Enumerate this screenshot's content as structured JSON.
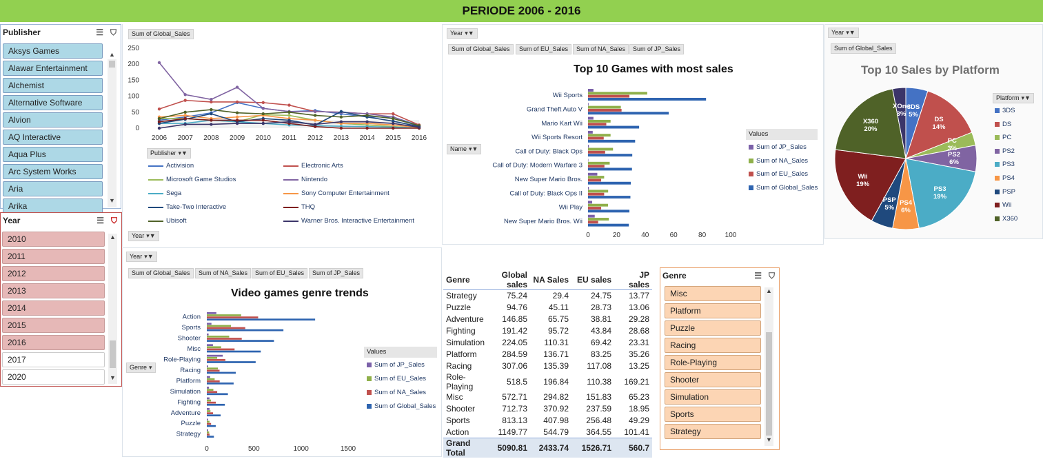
{
  "banner": {
    "title": "PERIODE 2006 - 2016"
  },
  "publisher_slicer": {
    "title": "Publisher",
    "items": [
      "Aksys Games",
      "Alawar Entertainment",
      "Alchemist",
      "Alternative Software",
      "Alvion",
      "AQ Interactive",
      "Aqua Plus",
      "Arc System Works",
      "Aria",
      "Arika"
    ]
  },
  "year_slicer": {
    "title": "Year",
    "items": [
      {
        "label": "2010",
        "selected": true
      },
      {
        "label": "2011",
        "selected": true
      },
      {
        "label": "2012",
        "selected": true
      },
      {
        "label": "2013",
        "selected": true
      },
      {
        "label": "2014",
        "selected": true
      },
      {
        "label": "2015",
        "selected": true
      },
      {
        "label": "2016",
        "selected": true
      },
      {
        "label": "2017",
        "selected": false
      },
      {
        "label": "2020",
        "selected": false
      }
    ]
  },
  "genre_slicer": {
    "title": "Genre",
    "items": [
      "Misc",
      "Platform",
      "Puzzle",
      "Racing",
      "Role-Playing",
      "Shooter",
      "Simulation",
      "Sports",
      "Strategy"
    ]
  },
  "line_chart": {
    "field_button": "Sum of Global_Sales",
    "legend_button": "Publisher",
    "axis_button": "Year",
    "chart_data": {
      "type": "line",
      "x": [
        "2006",
        "2007",
        "2008",
        "2009",
        "2010",
        "2011",
        "2012",
        "2013",
        "2014",
        "2015",
        "2016"
      ],
      "ylim": [
        0,
        250
      ],
      "yticks": [
        0,
        50,
        100,
        150,
        200,
        250
      ],
      "series": [
        {
          "name": "Activision",
          "color": "#4472c4",
          "values": [
            25,
            35,
            48,
            80,
            62,
            52,
            55,
            45,
            35,
            35,
            8
          ]
        },
        {
          "name": "Electronic Arts",
          "color": "#c0504d",
          "values": [
            60,
            87,
            82,
            82,
            80,
            72,
            52,
            50,
            45,
            45,
            10
          ]
        },
        {
          "name": "Microsoft Game Studios",
          "color": "#9bbb59",
          "values": [
            30,
            30,
            25,
            20,
            42,
            40,
            25,
            15,
            10,
            5,
            0
          ]
        },
        {
          "name": "Nintendo",
          "color": "#8064a2",
          "values": [
            205,
            105,
            90,
            128,
            62,
            52,
            52,
            50,
            45,
            35,
            5
          ]
        },
        {
          "name": "Sega",
          "color": "#4bacc6",
          "values": [
            15,
            15,
            25,
            20,
            15,
            10,
            8,
            6,
            5,
            3,
            1
          ]
        },
        {
          "name": "Sony Computer Entertainment",
          "color": "#f79646",
          "values": [
            35,
            40,
            30,
            35,
            40,
            30,
            25,
            15,
            15,
            10,
            2
          ]
        },
        {
          "name": "Take-Two Interactive",
          "color": "#1f497d",
          "values": [
            15,
            28,
            45,
            20,
            30,
            25,
            10,
            52,
            35,
            22,
            5
          ]
        },
        {
          "name": "THQ",
          "color": "#7f1f1f",
          "values": [
            20,
            30,
            25,
            25,
            25,
            15,
            5,
            0,
            0,
            0,
            0
          ]
        },
        {
          "name": "Ubisoft",
          "color": "#4f6228",
          "values": [
            30,
            50,
            58,
            48,
            45,
            50,
            40,
            35,
            40,
            30,
            8
          ]
        },
        {
          "name": "Warner Bros. Interactive Entertainment",
          "color": "#3b3569",
          "values": [
            0,
            12,
            12,
            15,
            15,
            20,
            12,
            20,
            20,
            15,
            3
          ]
        }
      ]
    }
  },
  "top10_chart": {
    "year_button": "Year",
    "field_buttons": [
      "Sum of Global_Sales",
      "Sum of EU_Sales",
      "Sum of NA_Sales",
      "Sum of JP_Sales"
    ],
    "axis_button": "Name",
    "legend_title": "Values",
    "chart_data": {
      "type": "bar",
      "title": "Top 10 Games with most sales",
      "categories": [
        "Wii Sports",
        "Grand Theft Auto V",
        "Mario Kart Wii",
        "Wii Sports Resort",
        "Call of Duty: Black Ops",
        "Call of Duty: Modern Warfare 3",
        "New Super Mario Bros.",
        "Call of Duty: Black Ops II",
        "Wii Play",
        "New Super Mario Bros. Wii"
      ],
      "xlim": [
        0,
        100
      ],
      "xticks": [
        0,
        20,
        40,
        60,
        80,
        100
      ],
      "series": [
        {
          "name": "Sum of JP_Sales",
          "color": "#7b61a9",
          "values": [
            3.8,
            0.4,
            3.8,
            3.3,
            0.6,
            0.1,
            6.5,
            0.6,
            2.9,
            4.7
          ]
        },
        {
          "name": "Sum of NA_Sales",
          "color": "#8fb04a",
          "values": [
            41.5,
            23,
            15.8,
            15.8,
            17.5,
            15.2,
            11.3,
            14.1,
            14.0,
            14.6
          ]
        },
        {
          "name": "Sum of EU_Sales",
          "color": "#c0504d",
          "values": [
            29,
            23.5,
            12.8,
            11,
            12,
            11.5,
            9.2,
            11.3,
            9.2,
            7.1
          ]
        },
        {
          "name": "Sum of Global_Sales",
          "color": "#2e64b0",
          "values": [
            82.7,
            56.6,
            35.8,
            33,
            31,
            30.8,
            30,
            29.7,
            29,
            28.6
          ]
        }
      ]
    }
  },
  "pie_chart": {
    "year_button": "Year",
    "field_button": "Sum of Global_Sales",
    "legend_title": "Platform",
    "chart_data": {
      "type": "pie",
      "title": "Top 10 Sales by Platform",
      "slices": [
        {
          "name": "3DS",
          "label": "3DS",
          "percent": "5%",
          "value": 5,
          "color": "#4472c4"
        },
        {
          "name": "DS",
          "label": "DS",
          "percent": "14%",
          "value": 14,
          "color": "#c0504d"
        },
        {
          "name": "PC",
          "label": "PC",
          "percent": "3%",
          "value": 3,
          "color": "#9bbb59"
        },
        {
          "name": "PS2",
          "label": "PS2",
          "percent": "6%",
          "value": 6,
          "color": "#8064a2"
        },
        {
          "name": "PS3",
          "label": "PS3",
          "percent": "19%",
          "value": 19,
          "color": "#4bacc6"
        },
        {
          "name": "PS4",
          "label": "PS4",
          "percent": "6%",
          "value": 6,
          "color": "#f79646"
        },
        {
          "name": "PSP",
          "label": "PSP",
          "percent": "5%",
          "value": 5,
          "color": "#1f497d"
        },
        {
          "name": "Wii",
          "label": "Wii",
          "percent": "19%",
          "value": 19,
          "color": "#7f1f1f"
        },
        {
          "name": "X360",
          "label": "X360",
          "percent": "20%",
          "value": 20,
          "color": "#4f6228"
        },
        {
          "name": "XOne",
          "label": "XOne",
          "percent": "3%",
          "value": 3,
          "color": "#3b3569"
        }
      ],
      "legend": [
        "3DS",
        "DS",
        "PC",
        "PS2",
        "PS3",
        "PS4",
        "PSP",
        "Wii",
        "X360"
      ]
    }
  },
  "genre_chart": {
    "year_button": "Year",
    "field_buttons": [
      "Sum of Global_Sales",
      "Sum of NA_Sales",
      "Sum of EU_Sales",
      "Sum of JP_Sales"
    ],
    "axis_button": "Genre",
    "legend_title": "Values",
    "chart_data": {
      "type": "bar",
      "title": "Video games genre trends",
      "categories": [
        "Action",
        "Sports",
        "Shooter",
        "Misc",
        "Role-Playing",
        "Racing",
        "Platform",
        "Simulation",
        "Fighting",
        "Adventure",
        "Puzzle",
        "Strategy"
      ],
      "xlim": [
        0,
        1500
      ],
      "xticks": [
        0,
        500,
        1000,
        1500
      ],
      "series": [
        {
          "name": "Sum of JP_Sales",
          "color": "#7b61a9",
          "values": [
            101.41,
            49.29,
            18.95,
            65.23,
            169.21,
            13.25,
            35.26,
            23.31,
            28.68,
            29.28,
            13.06,
            13.77
          ]
        },
        {
          "name": "Sum of EU_Sales",
          "color": "#8fb04a",
          "values": [
            364.55,
            256.48,
            237.59,
            151.83,
            110.38,
            117.08,
            83.25,
            69.42,
            43.84,
            38.81,
            28.73,
            24.75
          ]
        },
        {
          "name": "Sum of NA_Sales",
          "color": "#c0504d",
          "values": [
            544.79,
            407.98,
            370.92,
            294.82,
            196.84,
            135.39,
            136.71,
            110.31,
            95.72,
            65.75,
            45.11,
            29.4
          ]
        },
        {
          "name": "Sum of Global_Sales",
          "color": "#2e64b0",
          "values": [
            1149.77,
            813.13,
            712.73,
            572.71,
            518.5,
            307.06,
            284.59,
            224.05,
            191.42,
            146.85,
            94.76,
            75.24
          ]
        }
      ]
    }
  },
  "table": {
    "headers": [
      "Genre",
      "Global sales",
      "NA Sales",
      "EU sales",
      "JP sales"
    ],
    "rows": [
      [
        "Strategy",
        "75.24",
        "29.4",
        "24.75",
        "13.77"
      ],
      [
        "Puzzle",
        "94.76",
        "45.11",
        "28.73",
        "13.06"
      ],
      [
        "Adventure",
        "146.85",
        "65.75",
        "38.81",
        "29.28"
      ],
      [
        "Fighting",
        "191.42",
        "95.72",
        "43.84",
        "28.68"
      ],
      [
        "Simulation",
        "224.05",
        "110.31",
        "69.42",
        "23.31"
      ],
      [
        "Platform",
        "284.59",
        "136.71",
        "83.25",
        "35.26"
      ],
      [
        "Racing",
        "307.06",
        "135.39",
        "117.08",
        "13.25"
      ],
      [
        "Role-Playing",
        "518.5",
        "196.84",
        "110.38",
        "169.21"
      ],
      [
        "Misc",
        "572.71",
        "294.82",
        "151.83",
        "65.23"
      ],
      [
        "Shooter",
        "712.73",
        "370.92",
        "237.59",
        "18.95"
      ],
      [
        "Sports",
        "813.13",
        "407.98",
        "256.48",
        "49.29"
      ],
      [
        "Action",
        "1149.77",
        "544.79",
        "364.55",
        "101.41"
      ]
    ],
    "total": [
      "Grand Total",
      "5090.81",
      "2433.74",
      "1526.71",
      "560.7"
    ]
  }
}
